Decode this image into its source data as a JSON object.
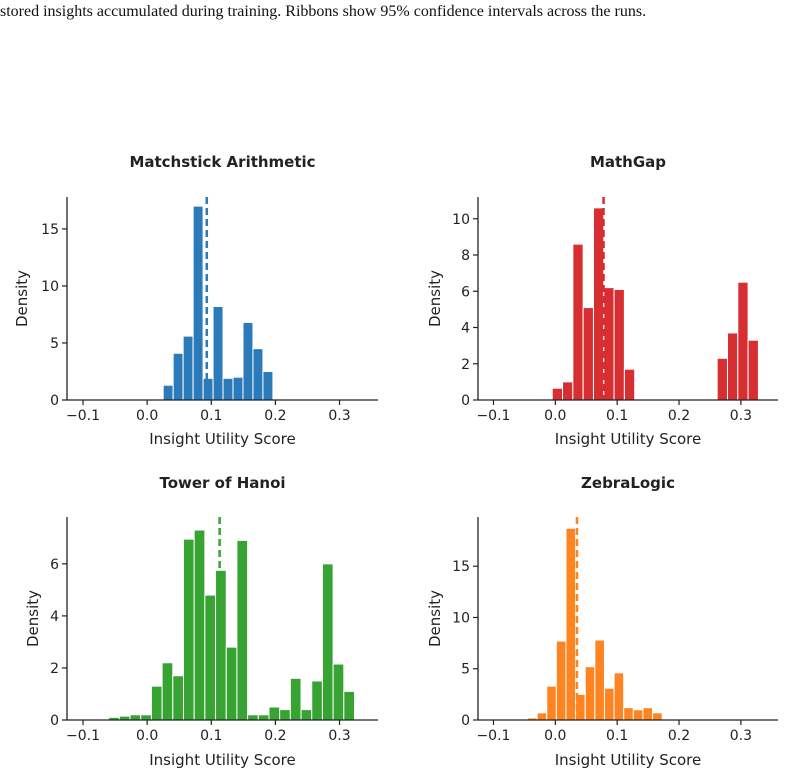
{
  "caption": "stored insights accumulated during training. Ribbons show 95% confidence intervals across the runs.",
  "chart_data": [
    {
      "type": "bar",
      "title": "Matchstick Arithmetic",
      "xlabel": "Insight Utility Score",
      "ylabel": "Density",
      "color": "#2b7bba",
      "xlim": [
        -0.125,
        0.36
      ],
      "ylim": [
        0,
        17.8
      ],
      "xticks": [
        -0.1,
        0.0,
        0.1,
        0.2,
        0.3
      ],
      "xtick_labels": [
        "−0.1",
        "0.0",
        "0.1",
        "0.2",
        "0.3"
      ],
      "yticks": [
        0,
        5,
        10,
        15
      ],
      "ytick_labels": [
        "0",
        "5",
        "10",
        "15"
      ],
      "bin_width": 0.01556,
      "bin_starts": [
        0.025,
        0.04056,
        0.05611,
        0.07167,
        0.08722,
        0.10278,
        0.11833,
        0.13389,
        0.14944,
        0.165,
        0.18056,
        0.19611
      ],
      "values": [
        1.3,
        4.1,
        5.6,
        17.0,
        1.9,
        8.2,
        1.9,
        2.0,
        6.8,
        4.5,
        2.5,
        0
      ],
      "mean_line": 0.093
    },
    {
      "type": "bar",
      "title": "MathGap",
      "xlabel": "Insight Utility Score",
      "ylabel": "Density",
      "color": "#d62e31",
      "xlim": [
        -0.125,
        0.36
      ],
      "ylim": [
        0,
        11.2
      ],
      "xticks": [
        -0.1,
        0.0,
        0.1,
        0.2,
        0.3
      ],
      "xtick_labels": [
        "−0.1",
        "0.0",
        "0.1",
        "0.2",
        "0.3"
      ],
      "yticks": [
        0,
        2,
        4,
        6,
        8,
        10
      ],
      "ytick_labels": [
        "0",
        "2",
        "4",
        "6",
        "8",
        "10"
      ],
      "bin_width": 0.01667,
      "bin_starts": [
        -0.005,
        0.01167,
        0.02833,
        0.045,
        0.06167,
        0.07833,
        0.095,
        0.11167,
        0.245,
        0.26167,
        0.27833,
        0.295,
        0.31167
      ],
      "values": [
        0.65,
        1.0,
        8.6,
        5.1,
        10.6,
        6.2,
        6.1,
        1.7,
        0,
        2.3,
        3.7,
        6.5,
        3.3
      ],
      "mean_line": 0.078
    },
    {
      "type": "bar",
      "title": "Tower of Hanoi",
      "xlabel": "Insight Utility Score",
      "ylabel": "Density",
      "color": "#36a332",
      "xlim": [
        -0.125,
        0.36
      ],
      "ylim": [
        0,
        7.8
      ],
      "xticks": [
        -0.1,
        0.0,
        0.1,
        0.2,
        0.3
      ],
      "xtick_labels": [
        "−0.1",
        "0.0",
        "0.1",
        "0.2",
        "0.3"
      ],
      "yticks": [
        0,
        2,
        4,
        6
      ],
      "ytick_labels": [
        "0",
        "2",
        "4",
        "6"
      ],
      "bin_width": 0.01667,
      "bin_starts": [
        -0.06,
        -0.04333,
        -0.02667,
        -0.01,
        0.00667,
        0.02333,
        0.04,
        0.05667,
        0.07333,
        0.09,
        0.10667,
        0.12333,
        0.14,
        0.15667,
        0.17333,
        0.19,
        0.20667,
        0.22333,
        0.24,
        0.25667,
        0.27333,
        0.29,
        0.30667,
        0.32333
      ],
      "values": [
        0.1,
        0.15,
        0.2,
        0.2,
        1.3,
        2.2,
        1.7,
        6.95,
        7.3,
        4.8,
        5.75,
        2.8,
        6.9,
        0.2,
        0.2,
        0.5,
        0.4,
        1.6,
        0.4,
        1.5,
        6.0,
        2.15,
        1.1,
        0
      ],
      "mean_line": 0.113
    },
    {
      "type": "bar",
      "title": "ZebraLogic",
      "xlabel": "Insight Utility Score",
      "ylabel": "Density",
      "color": "#fe8421",
      "xlim": [
        -0.125,
        0.36
      ],
      "ylim": [
        0,
        19.8
      ],
      "xticks": [
        -0.1,
        0.0,
        0.1,
        0.2,
        0.3
      ],
      "xtick_labels": [
        "−0.1",
        "0.0",
        "0.1",
        "0.2",
        "0.3"
      ],
      "yticks": [
        0,
        5,
        10,
        15
      ],
      "ytick_labels": [
        "0",
        "5",
        "10",
        "15"
      ],
      "bin_width": 0.01556,
      "bin_starts": [
        -0.045,
        -0.02944,
        -0.01389,
        0.00167,
        0.01722,
        0.03278,
        0.04833,
        0.06389,
        0.07944,
        0.095,
        0.11056,
        0.12611,
        0.14167,
        0.15722,
        0.17278
      ],
      "values": [
        0.2,
        0.7,
        3.3,
        7.7,
        18.7,
        2.5,
        5.2,
        7.8,
        3.1,
        4.6,
        1.2,
        1.0,
        1.2,
        0.7,
        0
      ],
      "mean_line": 0.035
    }
  ]
}
